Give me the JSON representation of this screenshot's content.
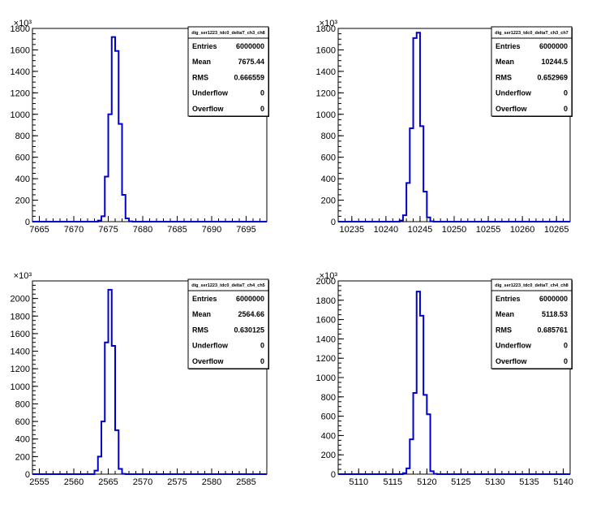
{
  "chart_data": [
    {
      "type": "histogram",
      "title": "dig_ser1223_tdc0_deltaT_ch3_ch8",
      "xlim": [
        7664,
        7698
      ],
      "ylim": [
        0,
        1800
      ],
      "y_multiplier": "×10³",
      "x_ticks": [
        7665,
        7670,
        7675,
        7680,
        7685,
        7690,
        7695
      ],
      "y_ticks": [
        0,
        200,
        400,
        600,
        800,
        1000,
        1200,
        1400,
        1600,
        1800
      ],
      "bin_width": 0.5,
      "bins": [
        [
          7673.5,
          10
        ],
        [
          7674.0,
          50
        ],
        [
          7674.5,
          420
        ],
        [
          7675.0,
          1000
        ],
        [
          7675.5,
          1720
        ],
        [
          7676.0,
          1590
        ],
        [
          7676.5,
          910
        ],
        [
          7677.0,
          250
        ],
        [
          7677.5,
          30
        ],
        [
          7678.0,
          3
        ]
      ],
      "stats": {
        "Entries": "6000000",
        "Mean": "7675.44",
        "RMS": "0.666559",
        "Underflow": "0",
        "Overflow": "0"
      }
    },
    {
      "type": "histogram",
      "title": "dig_ser1223_tdc0_deltaT_ch3_ch7",
      "xlim": [
        10233,
        10267
      ],
      "ylim": [
        0,
        1800
      ],
      "y_multiplier": "×10³",
      "x_ticks": [
        10235,
        10240,
        10245,
        10250,
        10255,
        10260,
        10265
      ],
      "y_ticks": [
        0,
        200,
        400,
        600,
        800,
        1000,
        1200,
        1400,
        1600,
        1800
      ],
      "bin_width": 0.5,
      "bins": [
        [
          10242.0,
          10
        ],
        [
          10242.5,
          60
        ],
        [
          10243.0,
          360
        ],
        [
          10243.5,
          870
        ],
        [
          10244.0,
          1710
        ],
        [
          10244.5,
          1760
        ],
        [
          10245.0,
          890
        ],
        [
          10245.5,
          280
        ],
        [
          10246.0,
          40
        ],
        [
          10246.5,
          3
        ]
      ],
      "stats": {
        "Entries": "6000000",
        "Mean": "10244.5",
        "RMS": "0.652969",
        "Underflow": "0",
        "Overflow": "0"
      }
    },
    {
      "type": "histogram",
      "title": "dig_ser1223_tdc0_deltaT_ch4_ch5",
      "xlim": [
        2554,
        2588
      ],
      "ylim": [
        0,
        2200
      ],
      "y_multiplier": "×10³",
      "x_ticks": [
        2555,
        2560,
        2565,
        2570,
        2575,
        2580,
        2585
      ],
      "y_ticks": [
        0,
        200,
        400,
        600,
        800,
        1000,
        1200,
        1400,
        1600,
        1800,
        2000
      ],
      "bin_width": 0.5,
      "bins": [
        [
          2563.0,
          40
        ],
        [
          2563.5,
          200
        ],
        [
          2564.0,
          600
        ],
        [
          2564.5,
          1500
        ],
        [
          2565.0,
          2100
        ],
        [
          2565.5,
          1460
        ],
        [
          2566.0,
          500
        ],
        [
          2566.5,
          60
        ],
        [
          2567.0,
          3
        ]
      ],
      "stats": {
        "Entries": "6000000",
        "Mean": "2564.66",
        "RMS": "0.630125",
        "Underflow": "0",
        "Overflow": "0"
      }
    },
    {
      "type": "histogram",
      "title": "dig_ser1223_tdc0_deltaT_ch4_ch8",
      "xlim": [
        5107,
        5141
      ],
      "ylim": [
        0,
        2000
      ],
      "y_multiplier": "×10³",
      "x_ticks": [
        5110,
        5115,
        5120,
        5125,
        5130,
        5135,
        5140
      ],
      "y_ticks": [
        0,
        200,
        400,
        600,
        800,
        1000,
        1200,
        1400,
        1600,
        1800,
        2000
      ],
      "bin_width": 0.5,
      "bins": [
        [
          5116.5,
          10
        ],
        [
          5117.0,
          60
        ],
        [
          5117.5,
          360
        ],
        [
          5118.0,
          840
        ],
        [
          5118.5,
          1890
        ],
        [
          5119.0,
          1640
        ],
        [
          5119.5,
          820
        ],
        [
          5120.0,
          620
        ],
        [
          5120.5,
          30
        ],
        [
          5121.0,
          3
        ]
      ],
      "stats": {
        "Entries": "6000000",
        "Mean": "5118.53",
        "RMS": "0.685761",
        "Underflow": "0",
        "Overflow": "0"
      }
    }
  ],
  "colors": {
    "histogram_line": "#0000cc",
    "axis": "#000000",
    "background": "#ffffff"
  }
}
